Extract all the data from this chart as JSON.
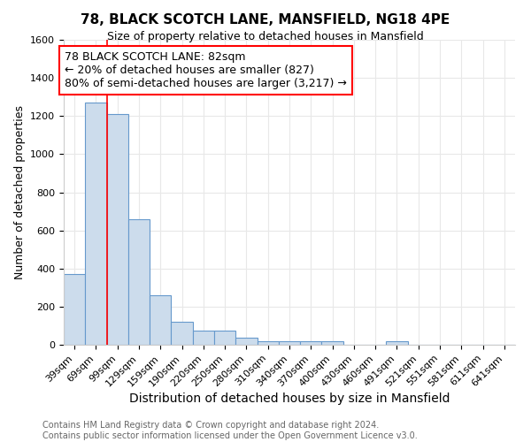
{
  "title1": "78, BLACK SCOTCH LANE, MANSFIELD, NG18 4PE",
  "title2": "Size of property relative to detached houses in Mansfield",
  "xlabel": "Distribution of detached houses by size in Mansfield",
  "ylabel": "Number of detached properties",
  "footnote1": "Contains HM Land Registry data © Crown copyright and database right 2024.",
  "footnote2": "Contains public sector information licensed under the Open Government Licence v3.0.",
  "categories": [
    "39sqm",
    "69sqm",
    "99sqm",
    "129sqm",
    "159sqm",
    "190sqm",
    "220sqm",
    "250sqm",
    "280sqm",
    "310sqm",
    "340sqm",
    "370sqm",
    "400sqm",
    "430sqm",
    "460sqm",
    "491sqm",
    "521sqm",
    "551sqm",
    "581sqm",
    "611sqm",
    "641sqm"
  ],
  "values": [
    370,
    1270,
    1210,
    660,
    260,
    120,
    73,
    73,
    37,
    20,
    18,
    18,
    18,
    0,
    0,
    18,
    0,
    0,
    0,
    0,
    0
  ],
  "bar_color": "#ccdcec",
  "bar_edge_color": "#6699cc",
  "annotation_line1": "78 BLACK SCOTCH LANE: 82sqm",
  "annotation_line2": "← 20% of detached houses are smaller (827)",
  "annotation_line3": "80% of semi-detached houses are larger (3,217) →",
  "annotation_box_facecolor": "white",
  "annotation_box_edgecolor": "red",
  "red_line_x": 1.5,
  "ylim": [
    0,
    1600
  ],
  "yticks": [
    0,
    200,
    400,
    600,
    800,
    1000,
    1200,
    1400,
    1600
  ],
  "grid_color": "#e8e8e8",
  "plot_bg_color": "white",
  "fig_bg_color": "white",
  "title1_fontsize": 11,
  "title2_fontsize": 9,
  "ylabel_fontsize": 9,
  "xlabel_fontsize": 10,
  "tick_fontsize": 8,
  "footnote_fontsize": 7,
  "annot_fontsize": 9
}
